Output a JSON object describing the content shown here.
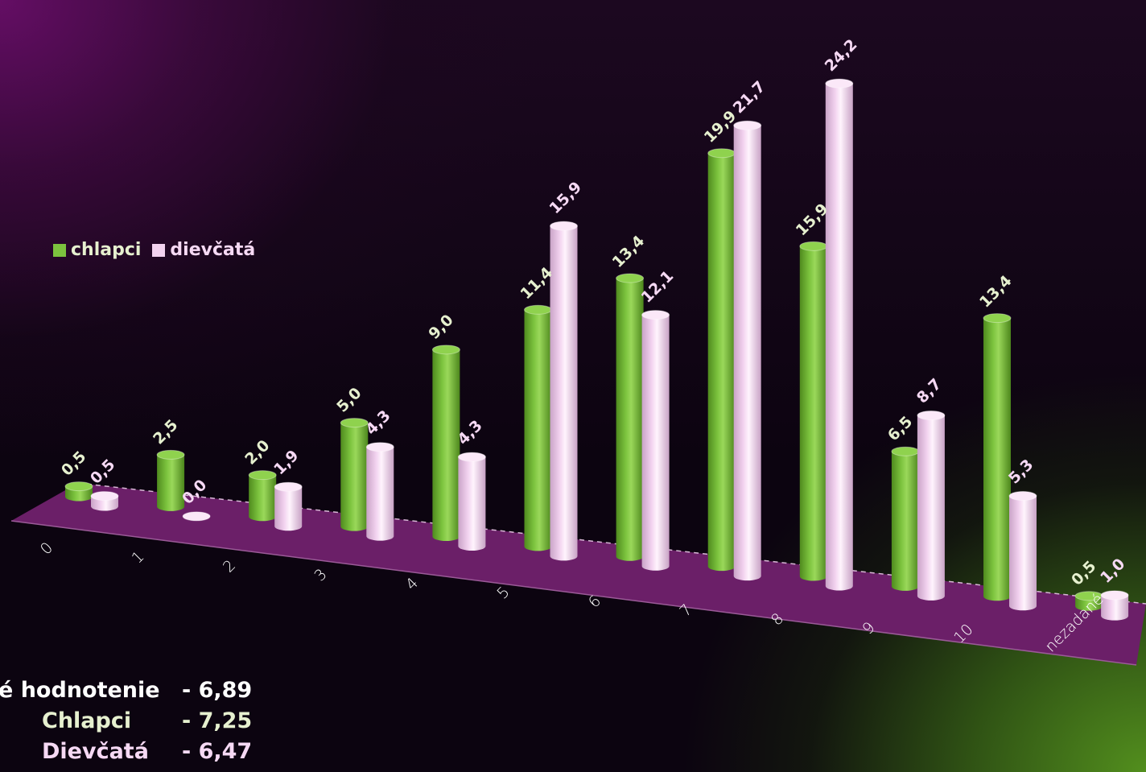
{
  "legend": {
    "boys_label": "chlapci",
    "girls_label": "dievčatá"
  },
  "summary": {
    "overall_label": "é hodnotenie",
    "overall_value": "- 6,89",
    "boys_label": "Chlapci",
    "boys_value": "- 7,25",
    "girls_label": "Dievčatá",
    "girls_value": "- 6,47"
  },
  "colors": {
    "boys": "#7cc33e",
    "girls": "#f2d2ef",
    "boys_label_text": "#e6f0cf",
    "girls_label_text": "#f6d9f4",
    "floor": "#6b1f68",
    "axis_text": "#ffffff"
  },
  "chart_data": {
    "type": "bar",
    "title": "",
    "xlabel": "",
    "ylabel": "",
    "categories": [
      "0",
      "1",
      "2",
      "3",
      "4",
      "5",
      "6",
      "7",
      "8",
      "9",
      "10",
      "nezadané"
    ],
    "series": [
      {
        "name": "chlapci",
        "values": [
          0.5,
          2.5,
          2.0,
          5.0,
          9.0,
          11.4,
          13.4,
          19.9,
          15.9,
          6.5,
          13.4,
          0.5
        ],
        "labels": [
          "0,5",
          "2,5",
          "2,0",
          "5,0",
          "9,0",
          "11,4",
          "13,4",
          "19,9",
          "15,9",
          "6,5",
          "13,4",
          "0,5"
        ]
      },
      {
        "name": "dievčatá",
        "values": [
          0.5,
          0.0,
          1.9,
          4.3,
          4.3,
          15.9,
          12.1,
          21.7,
          24.2,
          8.7,
          5.3,
          1.0
        ],
        "labels": [
          "0,5",
          "0,0",
          "1,9",
          "4,3",
          "4,3",
          "15,9",
          "12,1",
          "21,7",
          "24,2",
          "8,7",
          "5,3",
          "1,0"
        ]
      }
    ],
    "legend_position": "top-left",
    "grid": false,
    "style": "3d-cylinder"
  }
}
